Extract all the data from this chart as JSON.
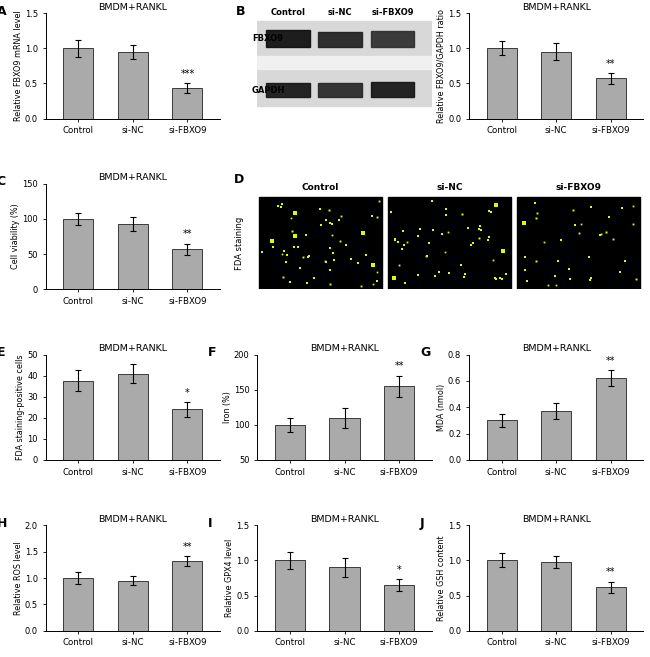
{
  "categories": [
    "Control",
    "si-NC",
    "si-FBXO9"
  ],
  "bar_color": "#aaaaaa",
  "bar_edge_color": "#222222",
  "bar_width": 0.55,
  "A": {
    "title": "BMDM+RANKL",
    "ylabel": "Relative FBXO9 mRNA level",
    "ylim": [
      0,
      1.5
    ],
    "yticks": [
      0.0,
      0.5,
      1.0,
      1.5
    ],
    "values": [
      1.0,
      0.95,
      0.43
    ],
    "errors": [
      0.12,
      0.1,
      0.07
    ],
    "sig": [
      "",
      "",
      "***"
    ]
  },
  "B_bar": {
    "title": "BMDM+RANKL",
    "ylabel": "Relative FBXO9/GAPDH ratio",
    "ylim": [
      0,
      1.5
    ],
    "yticks": [
      0.0,
      0.5,
      1.0,
      1.5
    ],
    "values": [
      1.0,
      0.95,
      0.57
    ],
    "errors": [
      0.1,
      0.12,
      0.08
    ],
    "sig": [
      "",
      "",
      "**"
    ]
  },
  "C": {
    "title": "BMDM+RANKL",
    "ylabel": "Cell viability (%)",
    "ylim": [
      0,
      150
    ],
    "yticks": [
      0,
      50,
      100,
      150
    ],
    "values": [
      100.0,
      93.0,
      57.0
    ],
    "errors": [
      9.0,
      10.0,
      8.0
    ],
    "sig": [
      "",
      "",
      "**"
    ]
  },
  "E": {
    "title": "BMDM+RANKL",
    "ylabel": "FDA staining-positive cells",
    "ylim": [
      0,
      50
    ],
    "yticks": [
      0,
      10,
      20,
      30,
      40,
      50
    ],
    "values": [
      37.5,
      41.0,
      24.0
    ],
    "errors": [
      5.0,
      4.5,
      3.5
    ],
    "sig": [
      "",
      "",
      "*"
    ]
  },
  "F": {
    "title": "BMDM+RANKL",
    "ylabel": "Iron (%)",
    "ylim": [
      50,
      200
    ],
    "yticks": [
      50,
      100,
      150,
      200
    ],
    "values": [
      100.0,
      110.0,
      155.0
    ],
    "errors": [
      10.0,
      14.0,
      15.0
    ],
    "sig": [
      "",
      "",
      "**"
    ]
  },
  "G": {
    "title": "BMDM+RANKL",
    "ylabel": "MDA (nmol)",
    "ylim": [
      0.0,
      0.8
    ],
    "yticks": [
      0.0,
      0.2,
      0.4,
      0.6,
      0.8
    ],
    "values": [
      0.3,
      0.37,
      0.62
    ],
    "errors": [
      0.05,
      0.06,
      0.06
    ],
    "sig": [
      "",
      "",
      "**"
    ]
  },
  "H": {
    "title": "BMDM+RANKL",
    "ylabel": "Relative ROS level",
    "ylim": [
      0,
      2.0
    ],
    "yticks": [
      0.0,
      0.5,
      1.0,
      1.5,
      2.0
    ],
    "values": [
      1.0,
      0.95,
      1.32
    ],
    "errors": [
      0.12,
      0.08,
      0.1
    ],
    "sig": [
      "",
      "",
      "**"
    ]
  },
  "I": {
    "title": "BMDM+RANKL",
    "ylabel": "Relative GPX4 level",
    "ylim": [
      0,
      1.5
    ],
    "yticks": [
      0.0,
      0.5,
      1.0,
      1.5
    ],
    "values": [
      1.0,
      0.9,
      0.65
    ],
    "errors": [
      0.12,
      0.13,
      0.08
    ],
    "sig": [
      "",
      "",
      "*"
    ]
  },
  "J": {
    "title": "BMDM+RANKL",
    "ylabel": "Relative GSH content",
    "ylim": [
      0,
      1.5
    ],
    "yticks": [
      0.0,
      0.5,
      1.0,
      1.5
    ],
    "values": [
      1.0,
      0.98,
      0.62
    ],
    "errors": [
      0.1,
      0.09,
      0.08
    ],
    "sig": [
      "",
      "",
      "**"
    ]
  },
  "wb_labels_top": [
    "Control",
    "si-NC",
    "si-FBXO9"
  ],
  "wb_row_labels": [
    "FBXO9",
    "GAPDH"
  ],
  "fda_titles": [
    "Control",
    "si-NC",
    "si-FBXO9"
  ],
  "fda_dot_counts": [
    55,
    50,
    35
  ],
  "fda_dot_color": "#d4ff00"
}
